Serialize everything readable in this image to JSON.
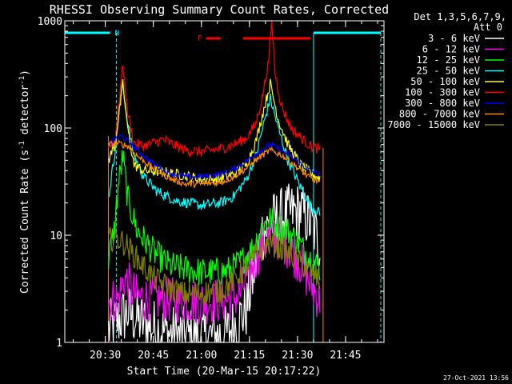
{
  "chart_data": {
    "type": "line",
    "title": "RHESSI Observing Summary Count Rates, Corrected",
    "xlabel": "Start Time (20-Mar-15 20:17:22)",
    "ylabel": "Corrected Count Rate (s⁻¹ detector⁻¹)",
    "ylabel_main": "Corrected Count Rate (s",
    "ylabel_sup1": "-1",
    "ylabel_mid": " detector",
    "ylabel_sup2": "-1",
    "ylabel_end": ")",
    "y_scale": "log",
    "ylim": [
      1,
      1000
    ],
    "xlim": [
      "20:17:22",
      "21:57:00"
    ],
    "x_ticks": [
      "20:30",
      "20:45",
      "21:00",
      "21:15",
      "21:30",
      "21:45"
    ],
    "y_ticks": [
      "1",
      "10",
      "100",
      "1000"
    ],
    "legend_header": [
      "Det 1,3,5,6,7,9,",
      "Att 0"
    ],
    "legend_position": "right",
    "footer_date": "27-Oct-2021 13:56",
    "annotations": [
      {
        "label": "N",
        "color": "#00ffff",
        "note": "night period bar",
        "from": "20:17:22",
        "to": "20:33:30"
      },
      {
        "label": "F",
        "color": "#ff0000",
        "note": "flare flag bar",
        "from": "21:01:30",
        "to": "21:34:00"
      }
    ],
    "data_window": {
      "from": "20:31",
      "to": "21:38"
    },
    "saa_window": {
      "from": "21:35",
      "to": "21:56"
    },
    "series": [
      {
        "name": "3 - 6 keV",
        "color": "#ffffff",
        "x": [
          "20:31",
          "20:34",
          "20:37",
          "20:42",
          "20:50",
          "21:00",
          "21:08",
          "21:14",
          "21:19",
          "21:23",
          "21:27",
          "21:31",
          "21:34",
          "21:37"
        ],
        "values": [
          1.3,
          1.6,
          1.9,
          1.5,
          1.2,
          1.1,
          1.2,
          2.0,
          10.5,
          14,
          16,
          17,
          13,
          8.5
        ]
      },
      {
        "name": "6 - 12 keV",
        "color": "#ff00ff",
        "x": [
          "20:31",
          "20:34",
          "20:36",
          "20:40",
          "20:50",
          "21:00",
          "21:08",
          "21:12",
          "21:16",
          "21:20",
          "21:23",
          "21:27",
          "21:31",
          "21:34",
          "21:37"
        ],
        "values": [
          2.5,
          2.5,
          4.0,
          2.6,
          2.5,
          2.4,
          2.5,
          2.8,
          5.5,
          9.0,
          10,
          8.0,
          5.5,
          3.5,
          2.5
        ]
      },
      {
        "name": "12 - 25 keV",
        "color": "#00ff00",
        "x": [
          "20:31",
          "20:33",
          "20:34",
          "20:35.5",
          "20:37",
          "20:40",
          "20:45",
          "20:50",
          "21:00",
          "21:08",
          "21:12",
          "21:16",
          "21:19",
          "21:21.5",
          "21:24",
          "21:27",
          "21:31",
          "21:34",
          "21:37"
        ],
        "values": [
          6,
          12,
          28,
          55,
          22,
          11,
          7,
          5.2,
          4.5,
          4.6,
          5.5,
          7.5,
          12,
          14,
          12,
          11,
          8,
          6,
          5
        ]
      },
      {
        "name": "25 - 50 keV",
        "color": "#00ffff",
        "x": [
          "20:31",
          "20:33",
          "20:34.5",
          "20:35.5",
          "20:37",
          "20:39",
          "20:42",
          "20:46",
          "20:52",
          "21:00",
          "21:06",
          "21:10",
          "21:14",
          "21:17",
          "21:19.5",
          "21:21.5",
          "21:24",
          "21:27",
          "21:31",
          "21:34",
          "21:37"
        ],
        "values": [
          22,
          60,
          170,
          250,
          110,
          55,
          35,
          26,
          21,
          19,
          20,
          23,
          33,
          55,
          110,
          190,
          100,
          50,
          28,
          19,
          16
        ]
      },
      {
        "name": "50 - 100 keV",
        "color": "#ffff00",
        "x": [
          "20:31",
          "20:33",
          "20:34.5",
          "20:35.5",
          "20:37",
          "20:39",
          "20:42",
          "20:48",
          "20:55",
          "21:00",
          "21:06",
          "21:10",
          "21:14",
          "21:17",
          "21:19.5",
          "21:21.5",
          "21:24",
          "21:27",
          "21:31",
          "21:34",
          "21:37"
        ],
        "values": [
          50,
          70,
          150,
          260,
          100,
          45,
          40,
          39,
          36,
          33,
          34,
          37,
          45,
          75,
          150,
          260,
          120,
          70,
          45,
          38,
          34
        ]
      },
      {
        "name": "100 - 300 keV",
        "color": "#ff0000",
        "x": [
          "20:31",
          "20:33",
          "20:34.5",
          "20:35.5",
          "20:37",
          "20:39",
          "20:42",
          "20:48",
          "20:55",
          "21:00",
          "21:06",
          "21:10",
          "21:14",
          "21:17",
          "21:19",
          "21:21",
          "21:22",
          "21:23",
          "21:25",
          "21:28",
          "21:31",
          "21:34",
          "21:37"
        ],
        "values": [
          68,
          78,
          200,
          390,
          140,
          72,
          68,
          78,
          62,
          60,
          64,
          70,
          80,
          110,
          190,
          420,
          1000,
          330,
          160,
          100,
          82,
          68,
          63
        ]
      },
      {
        "name": "300 - 800 keV",
        "color": "#0000ff",
        "x": [
          "20:31",
          "20:33",
          "20:35",
          "20:37",
          "20:40",
          "20:45",
          "20:50",
          "20:55",
          "21:00",
          "21:06",
          "21:10",
          "21:14",
          "21:18",
          "21:21.5",
          "21:25",
          "21:28",
          "21:31",
          "21:34",
          "21:37"
        ],
        "values": [
          70,
          78,
          84,
          76,
          62,
          46,
          38,
          35,
          35,
          37,
          41,
          49,
          60,
          70,
          62,
          54,
          46,
          40,
          37
        ]
      },
      {
        "name": "800 - 7000 keV",
        "color": "#ff8800",
        "x": [
          "20:31",
          "20:34",
          "20:37",
          "20:40",
          "20:45",
          "20:50",
          "20:55",
          "21:00",
          "21:06",
          "21:10",
          "21:14",
          "21:18",
          "21:21.5",
          "21:25",
          "21:28",
          "21:31",
          "21:34",
          "21:37"
        ],
        "values": [
          70,
          72,
          68,
          55,
          42,
          34,
          30,
          30,
          31,
          35,
          42,
          53,
          62,
          56,
          48,
          40,
          34,
          31
        ]
      },
      {
        "name": "7000 - 15000 keV",
        "color": "#808000",
        "x": [
          "20:31",
          "20:33",
          "20:36",
          "20:40",
          "20:45",
          "20:50",
          "20:55",
          "21:00",
          "21:06",
          "21:10",
          "21:14",
          "21:18",
          "21:21.5",
          "21:25",
          "21:28",
          "21:31",
          "21:34",
          "21:37"
        ],
        "values": [
          9.0,
          9.5,
          8.5,
          6.0,
          4.0,
          3.2,
          2.8,
          2.9,
          3.0,
          3.8,
          5.0,
          7.0,
          8.5,
          7.5,
          6.5,
          5.5,
          4.5,
          3.8
        ]
      }
    ]
  }
}
